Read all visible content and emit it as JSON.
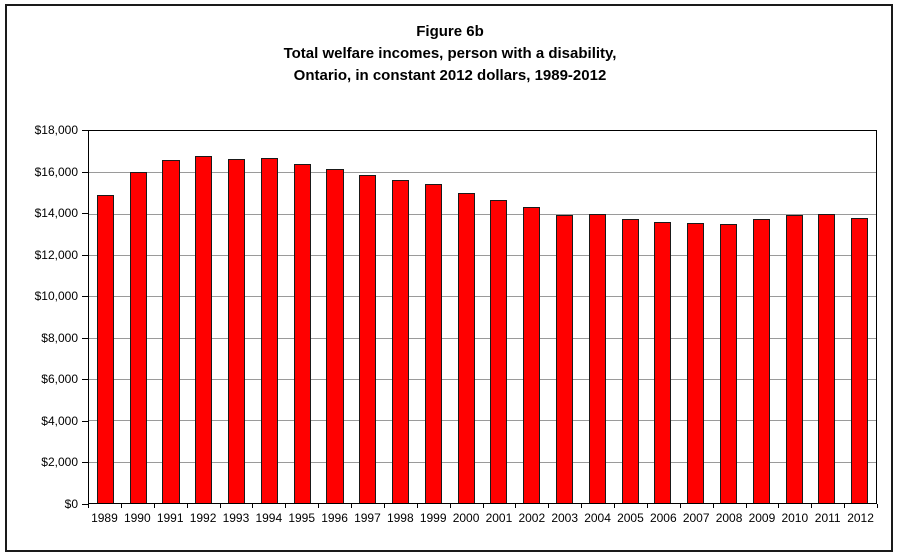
{
  "figure": {
    "title_line1": "Figure 6b",
    "title_line2": "Total welfare incomes, person with a disability,",
    "title_line3": "Ontario, in constant 2012 dollars, 1989-2012"
  },
  "chart_data": {
    "type": "bar",
    "title": "Figure 6b",
    "subtitle": "Total welfare incomes, person with a disability, Ontario, in constant 2012 dollars, 1989-2012",
    "categories": [
      "1989",
      "1990",
      "1991",
      "1992",
      "1993",
      "1994",
      "1995",
      "1996",
      "1997",
      "1998",
      "1999",
      "2000",
      "2001",
      "2002",
      "2003",
      "2004",
      "2005",
      "2006",
      "2007",
      "2008",
      "2009",
      "2010",
      "2011",
      "2012"
    ],
    "values": [
      14900,
      16000,
      16600,
      16800,
      16650,
      16700,
      16400,
      16150,
      15850,
      15650,
      15450,
      15000,
      14650,
      14300,
      13950,
      14000,
      13750,
      13600,
      13550,
      13500,
      13750,
      13950,
      14000,
      13800
    ],
    "xlabel": "",
    "ylabel": "",
    "ylim": [
      0,
      18000
    ],
    "ytick_step": 2000,
    "ytick_labels": [
      "$0",
      "$2,000",
      "$4,000",
      "$6,000",
      "$8,000",
      "$10,000",
      "$12,000",
      "$14,000",
      "$16,000",
      "$18,000"
    ],
    "grid": "horizontal",
    "legend": "none",
    "colors": {
      "bar": "#FF0000",
      "bar_border": "#1a1a1a",
      "gridline": "#9a9a9a",
      "axis": "#000000",
      "figure_border": "#1a1a1a",
      "background": "#FFFFFF",
      "text": "#000000"
    }
  }
}
